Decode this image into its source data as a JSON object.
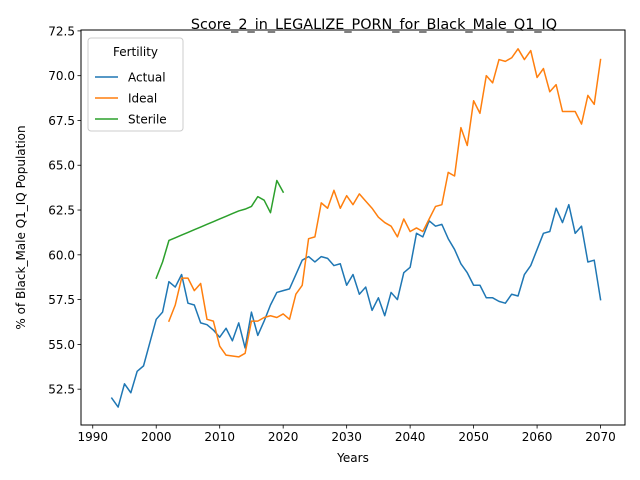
{
  "chart_data": {
    "type": "line",
    "title": "Score_2_in_LEGALIZE_PORN_for_Black_Male_Q1_IQ",
    "xlabel": "Years",
    "ylabel": "% of Black_Male Q1_IQ Population",
    "xlim": [
      1988.15,
      2073.85
    ],
    "ylim": [
      50.5,
      72.55
    ],
    "xticks": [
      1990,
      2000,
      2010,
      2020,
      2030,
      2040,
      2050,
      2060,
      2070
    ],
    "yticks": [
      52.5,
      55.0,
      57.5,
      60.0,
      62.5,
      65.0,
      67.5,
      70.0,
      72.5
    ],
    "ytick_labels": [
      "52.5",
      "55.0",
      "57.5",
      "60.0",
      "62.5",
      "65.0",
      "67.5",
      "70.0",
      "72.5"
    ],
    "grid": false,
    "legend": {
      "title": "Fertility",
      "placement": "top-left"
    },
    "series": [
      {
        "name": "Actual",
        "color": "#1f77b4",
        "x": [
          1993,
          1994,
          1995,
          1996,
          1997,
          1998,
          1999,
          2000,
          2001,
          2002,
          2003,
          2004,
          2005,
          2006,
          2007,
          2008,
          2009,
          2010,
          2011,
          2012,
          2013,
          2014,
          2015,
          2016,
          2017,
          2018,
          2019,
          2020,
          2021,
          2022,
          2023,
          2024,
          2025,
          2026,
          2027,
          2028,
          2029,
          2030,
          2031,
          2032,
          2033,
          2034,
          2035,
          2036,
          2037,
          2038,
          2039,
          2040,
          2041,
          2042,
          2043,
          2044,
          2045,
          2046,
          2047,
          2048,
          2049,
          2050,
          2051,
          2052,
          2053,
          2054,
          2055,
          2056,
          2057,
          2058,
          2059,
          2060,
          2061,
          2062,
          2063,
          2064,
          2065,
          2066,
          2067,
          2068,
          2069,
          2070
        ],
        "values": [
          52.0,
          51.5,
          52.8,
          52.3,
          53.5,
          53.8,
          55.1,
          56.4,
          56.8,
          58.5,
          58.2,
          58.9,
          57.3,
          57.2,
          56.2,
          56.1,
          55.8,
          55.4,
          55.9,
          55.2,
          56.2,
          54.8,
          56.8,
          55.5,
          56.3,
          57.2,
          57.9,
          58.0,
          58.1,
          58.9,
          59.7,
          59.9,
          59.6,
          59.9,
          59.8,
          59.4,
          59.5,
          58.3,
          58.9,
          57.8,
          58.2,
          56.9,
          57.6,
          56.6,
          57.9,
          57.5,
          59.0,
          59.3,
          61.2,
          61.0,
          61.9,
          61.6,
          61.7,
          60.9,
          60.3,
          59.5,
          59.0,
          58.3,
          58.3,
          57.6,
          57.6,
          57.4,
          57.3,
          57.8,
          57.7,
          58.9,
          59.4,
          60.3,
          61.2,
          61.3,
          62.6,
          61.8,
          62.8,
          61.2,
          61.6,
          59.6,
          59.7,
          57.5
        ]
      },
      {
        "name": "Ideal",
        "color": "#ff7f0e",
        "x": [
          2002,
          2003,
          2004,
          2005,
          2006,
          2007,
          2008,
          2009,
          2010,
          2011,
          2012,
          2013,
          2014,
          2015,
          2016,
          2017,
          2018,
          2019,
          2020,
          2021,
          2022,
          2023,
          2024,
          2025,
          2026,
          2027,
          2028,
          2029,
          2030,
          2031,
          2032,
          2033,
          2034,
          2035,
          2036,
          2037,
          2038,
          2039,
          2040,
          2041,
          2042,
          2043,
          2044,
          2045,
          2046,
          2047,
          2048,
          2049,
          2050,
          2051,
          2052,
          2053,
          2054,
          2055,
          2056,
          2057,
          2058,
          2059,
          2060,
          2061,
          2062,
          2063,
          2064,
          2065,
          2066,
          2067,
          2068,
          2069,
          2070
        ],
        "values": [
          56.3,
          57.2,
          58.7,
          58.7,
          58.0,
          58.4,
          56.4,
          56.3,
          54.9,
          54.4,
          54.35,
          54.3,
          54.5,
          56.3,
          56.3,
          56.5,
          56.6,
          56.5,
          56.7,
          56.4,
          57.8,
          58.3,
          60.9,
          61.0,
          62.9,
          62.6,
          63.6,
          62.6,
          63.3,
          62.8,
          63.4,
          63.0,
          62.6,
          62.1,
          61.8,
          61.6,
          61.0,
          62.0,
          61.3,
          61.5,
          61.3,
          62.0,
          62.7,
          62.8,
          64.6,
          64.4,
          67.1,
          66.1,
          68.6,
          67.9,
          70.0,
          69.6,
          70.9,
          70.8,
          71.0,
          71.5,
          70.9,
          71.4,
          69.9,
          70.4,
          69.1,
          69.5,
          68.0,
          68.0,
          68.0,
          67.3,
          68.9,
          68.4,
          70.9
        ]
      },
      {
        "name": "Sterile",
        "color": "#2ca02c",
        "x": [
          2000,
          2001,
          2002,
          2003,
          2004,
          2005,
          2006,
          2007,
          2008,
          2009,
          2010,
          2011,
          2012,
          2013,
          2014,
          2015,
          2016,
          2017,
          2018,
          2019,
          2020
        ],
        "values": [
          58.7,
          59.6,
          60.8,
          60.95,
          61.1,
          61.25,
          61.4,
          61.55,
          61.7,
          61.85,
          62.0,
          62.15,
          62.3,
          62.45,
          62.55,
          62.7,
          63.25,
          63.05,
          62.35,
          64.15,
          63.5
        ]
      }
    ]
  }
}
